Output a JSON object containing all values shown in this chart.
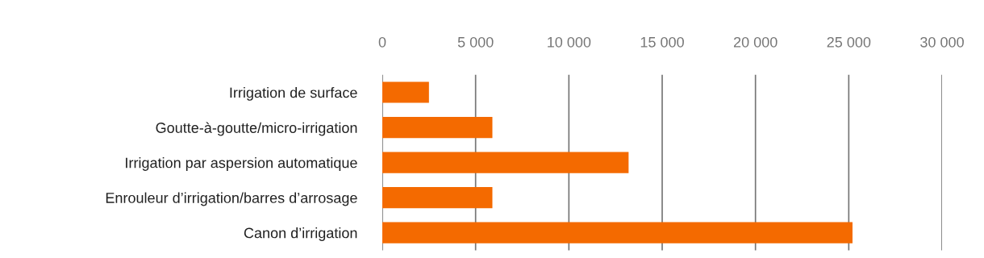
{
  "chart_data": {
    "type": "bar",
    "orientation": "horizontal",
    "categories": [
      "Irrigation de surface",
      "Goutte-à-goutte/micro-irrigation",
      "Irrigation par aspersion automatique",
      "Enrouleur d’irrigation/barres d’arrosage",
      "Canon d’irrigation"
    ],
    "values": [
      2500,
      5900,
      13200,
      5900,
      25200
    ],
    "color": "#f46a00",
    "xlim": [
      0,
      30000
    ],
    "xticks": [
      {
        "value": 0,
        "label": "0"
      },
      {
        "value": 5000,
        "label": "5 000"
      },
      {
        "value": 10000,
        "label": "10 000"
      },
      {
        "value": 15000,
        "label": "15 000"
      },
      {
        "value": 20000,
        "label": "20 000"
      },
      {
        "value": 25000,
        "label": "25 000"
      },
      {
        "value": 30000,
        "label": "30 000"
      }
    ],
    "grid": "x",
    "legend": false
  }
}
